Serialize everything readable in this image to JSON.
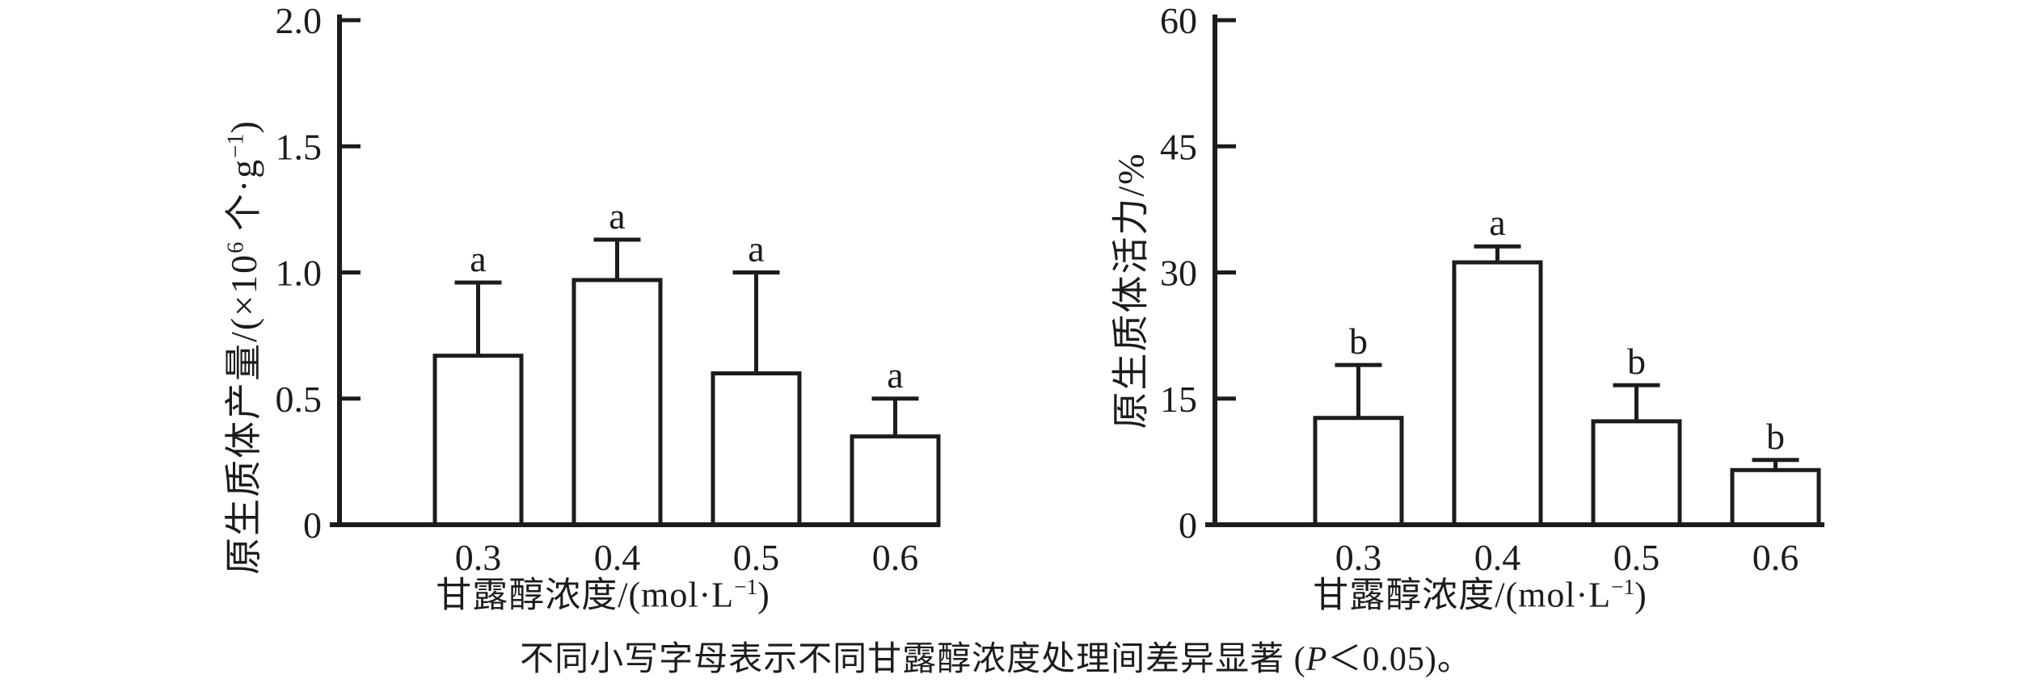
{
  "figure": {
    "background": "#ffffff",
    "ink_color": "#1c1c1c",
    "bar_fill": "#ffffff"
  },
  "caption": {
    "text": "不同小写字母表示不同甘露醇浓度处理间差异显著 (P＜0.05)。",
    "parts": [
      {
        "text": "不同小写字母表示不同甘露醇浓度处理间差异显著 (",
        "style": "normal"
      },
      {
        "text": "P",
        "style": "italic"
      },
      {
        "text": "＜0.05)。",
        "style": "normal"
      }
    ]
  },
  "chart_data": [
    {
      "id": "protoplast-yield",
      "type": "bar",
      "title": "",
      "xlabel": "甘露醇浓度/(mol·L⁻¹)",
      "xlabel_parts": [
        {
          "text": "甘露醇浓度/(mol·L",
          "style": "normal"
        },
        {
          "text": "−1",
          "style": "sup"
        },
        {
          "text": ")",
          "style": "normal"
        }
      ],
      "ylabel": "原生质体产量/(×10⁶ 个·g⁻¹)",
      "ylabel_parts": [
        {
          "text": "原生质体产量/(×10",
          "style": "normal"
        },
        {
          "text": "6",
          "style": "sup"
        },
        {
          "text": " 个·g",
          "style": "normal"
        },
        {
          "text": "−1",
          "style": "sup"
        },
        {
          "text": ")",
          "style": "normal"
        }
      ],
      "categories": [
        "0.3",
        "0.4",
        "0.5",
        "0.6"
      ],
      "values": [
        0.67,
        0.97,
        0.6,
        0.35
      ],
      "error_plus": [
        0.29,
        0.16,
        0.4,
        0.15
      ],
      "sig_letters": [
        "a",
        "a",
        "a",
        "a"
      ],
      "ylim": [
        0,
        2.0
      ],
      "yticks": [
        "0",
        "0.5",
        "1.0",
        "1.5",
        "2.0"
      ],
      "grid": false,
      "legend": "none"
    },
    {
      "id": "protoplast-viability",
      "type": "bar",
      "title": "",
      "xlabel": "甘露醇浓度/(mol·L⁻¹)",
      "xlabel_parts": [
        {
          "text": "甘露醇浓度/(mol·L",
          "style": "normal"
        },
        {
          "text": "−1",
          "style": "sup"
        },
        {
          "text": ")",
          "style": "normal"
        }
      ],
      "ylabel": "原生质体活力/%",
      "ylabel_parts": [
        {
          "text": "原生质体活力/%",
          "style": "normal"
        }
      ],
      "categories": [
        "0.3",
        "0.4",
        "0.5",
        "0.6"
      ],
      "values": [
        12.7,
        31.2,
        12.3,
        6.5
      ],
      "error_plus": [
        6.3,
        1.9,
        4.3,
        1.2
      ],
      "sig_letters": [
        "b",
        "a",
        "b",
        "b"
      ],
      "ylim": [
        0,
        60
      ],
      "yticks": [
        "0",
        "15",
        "30",
        "45",
        "60"
      ],
      "grid": false,
      "legend": "none"
    }
  ]
}
